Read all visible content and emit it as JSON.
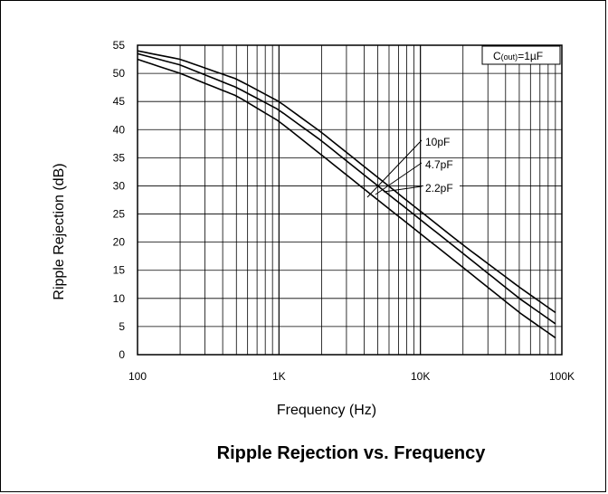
{
  "chart_data": {
    "type": "line",
    "title": "Ripple Rejection vs. Frequency",
    "xlabel": "Frequency (Hz)",
    "ylabel": "Ripple Rejection (dB)",
    "x_scale": "log",
    "xlim": [
      100,
      100000
    ],
    "ylim": [
      0,
      55
    ],
    "x_ticks": [
      {
        "value": 100,
        "label": "100"
      },
      {
        "value": 1000,
        "label": "1K"
      },
      {
        "value": 10000,
        "label": "10K"
      },
      {
        "value": 100000,
        "label": "100K"
      }
    ],
    "y_ticks": [
      0,
      5,
      10,
      15,
      20,
      25,
      30,
      35,
      40,
      45,
      50,
      55
    ],
    "grid": true,
    "annotation": {
      "prefix": "C",
      "subscript": "(out)",
      "suffix": "=1µF"
    },
    "series": [
      {
        "name": "10pF",
        "x": [
          100,
          200,
          500,
          1000,
          2000,
          5000,
          10000,
          20000,
          50000,
          90000
        ],
        "y": [
          54,
          52.5,
          49,
          45,
          39.5,
          31.5,
          25.5,
          19.5,
          12,
          7.5
        ]
      },
      {
        "name": "4.7pF",
        "x": [
          100,
          200,
          500,
          1000,
          2000,
          5000,
          10000,
          20000,
          50000,
          90000
        ],
        "y": [
          53.5,
          51.5,
          47.5,
          43.5,
          38,
          30,
          24,
          18,
          10,
          5.5
        ]
      },
      {
        "name": "2.2pF",
        "x": [
          100,
          200,
          500,
          1000,
          2000,
          5000,
          10000,
          20000,
          50000,
          90000
        ],
        "y": [
          52.5,
          50,
          46,
          41.5,
          35.5,
          27.5,
          21.5,
          15.5,
          7.5,
          3
        ]
      }
    ]
  }
}
